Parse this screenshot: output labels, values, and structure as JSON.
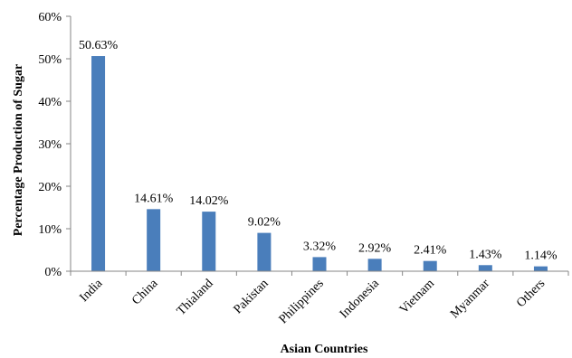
{
  "chart_data": {
    "type": "bar",
    "title": "",
    "xlabel": "Asian Countries",
    "ylabel": "Percentage Production of Sugar",
    "ylim": [
      0,
      60
    ],
    "yticks": [
      0,
      10,
      20,
      30,
      40,
      50,
      60
    ],
    "ytick_labels": [
      "0%",
      "10%",
      "20%",
      "30%",
      "40%",
      "50%",
      "60%"
    ],
    "grid": false,
    "legend": "none",
    "categories": [
      "India",
      "China",
      "Thialand",
      "Pakistan",
      "Philippines",
      "Indonesia",
      "Vietnam",
      "Myanmar",
      "Others"
    ],
    "values": [
      50.63,
      14.61,
      14.02,
      9.02,
      3.32,
      2.92,
      2.41,
      1.43,
      1.14
    ],
    "value_labels": [
      "50.63%",
      "14.61%",
      "14.02%",
      "9.02%",
      "3.32%",
      "2.92%",
      "2.41%",
      "1.43%",
      "1.14%"
    ],
    "colors": {
      "bar": "#4a7ebb",
      "axis": "#868686",
      "text": "#000000"
    }
  }
}
